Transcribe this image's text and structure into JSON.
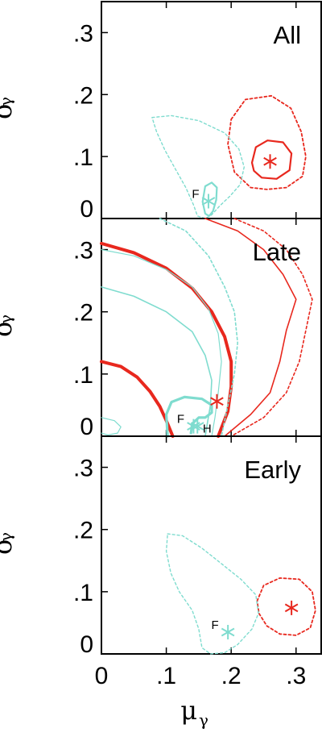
{
  "colors": {
    "red": "#e8281e",
    "cyan": "#7fdccf",
    "frame": "#000000"
  },
  "axes": {
    "xlabel_main": "μ",
    "xlabel_sub": "γ",
    "ylabel_main": "σ",
    "ylabel_sub": "γ",
    "xticks": [
      {
        "v": 0,
        "label": "0"
      },
      {
        "v": 0.1,
        "label": ".1"
      },
      {
        "v": 0.2,
        "label": ".2"
      },
      {
        "v": 0.3,
        "label": ".3"
      }
    ],
    "yticks": [
      {
        "v": 0,
        "label": "0"
      },
      {
        "v": 0.1,
        "label": ".1"
      },
      {
        "v": 0.2,
        "label": ".2"
      },
      {
        "v": 0.3,
        "label": ".3"
      }
    ],
    "xlim": [
      0,
      0.34
    ],
    "ylim": [
      0,
      0.35
    ]
  },
  "chart_data": [
    {
      "type": "scatter",
      "title": "All",
      "xlim": [
        0,
        0.34
      ],
      "ylim": [
        0,
        0.35
      ],
      "markers": [
        {
          "color": "red",
          "x": 0.26,
          "y": 0.092,
          "label": ""
        },
        {
          "color": "cyan",
          "x": 0.165,
          "y": 0.028,
          "label": "F"
        }
      ],
      "contours": [
        {
          "color": "red",
          "style": "solid",
          "width": 2.2,
          "points": [
            [
              0.232,
              0.09
            ],
            [
              0.238,
              0.115
            ],
            [
              0.256,
              0.126
            ],
            [
              0.28,
              0.123
            ],
            [
              0.293,
              0.105
            ],
            [
              0.29,
              0.078
            ],
            [
              0.27,
              0.064
            ],
            [
              0.247,
              0.066
            ],
            [
              0.235,
              0.077
            ],
            [
              0.232,
              0.09
            ]
          ]
        },
        {
          "color": "red",
          "style": "dash",
          "width": 1.8,
          "points": [
            [
              0.2,
              0.16
            ],
            [
              0.222,
              0.192
            ],
            [
              0.262,
              0.198
            ],
            [
              0.292,
              0.178
            ],
            [
              0.308,
              0.14
            ],
            [
              0.315,
              0.1
            ],
            [
              0.31,
              0.068
            ],
            [
              0.285,
              0.05
            ],
            [
              0.255,
              0.047
            ],
            [
              0.23,
              0.05
            ],
            [
              0.205,
              0.075
            ],
            [
              0.195,
              0.12
            ],
            [
              0.2,
              0.16
            ]
          ]
        },
        {
          "color": "cyan",
          "style": "dash",
          "width": 1.4,
          "points": [
            [
              0.078,
              0.163
            ],
            [
              0.108,
              0.166
            ],
            [
              0.15,
              0.158
            ],
            [
              0.19,
              0.138
            ],
            [
              0.212,
              0.112
            ],
            [
              0.22,
              0.083
            ],
            [
              0.214,
              0.055
            ],
            [
              0.198,
              0.036
            ],
            [
              0.182,
              0.02
            ],
            [
              0.17,
              0.006
            ],
            [
              0.16,
              0.0
            ],
            [
              0.148,
              0.004
            ],
            [
              0.142,
              0.022
            ],
            [
              0.13,
              0.05
            ],
            [
              0.115,
              0.078
            ],
            [
              0.098,
              0.11
            ],
            [
              0.085,
              0.14
            ],
            [
              0.078,
              0.163
            ]
          ]
        },
        {
          "color": "cyan",
          "style": "solid",
          "width": 2.2,
          "points": [
            [
              0.156,
              0.027
            ],
            [
              0.16,
              0.052
            ],
            [
              0.17,
              0.058
            ],
            [
              0.178,
              0.05
            ],
            [
              0.177,
              0.03
            ],
            [
              0.172,
              0.012
            ],
            [
              0.166,
              0.004
            ],
            [
              0.16,
              0.008
            ],
            [
              0.156,
              0.027
            ]
          ]
        }
      ]
    },
    {
      "type": "scatter",
      "title": "Late",
      "xlim": [
        0,
        0.34
      ],
      "ylim": [
        0,
        0.35
      ],
      "markers": [
        {
          "color": "red",
          "x": 0.178,
          "y": 0.056,
          "label": ""
        },
        {
          "color": "cyan",
          "x": 0.142,
          "y": 0.016,
          "label": "F"
        },
        {
          "color": "cyan",
          "x": 0.148,
          "y": 0.016,
          "label": "H"
        }
      ],
      "contours": [
        {
          "color": "red",
          "style": "solid",
          "width": 4,
          "points": [
            [
              0.0,
              0.12
            ],
            [
              0.03,
              0.112
            ],
            [
              0.055,
              0.095
            ],
            [
              0.075,
              0.072
            ],
            [
              0.09,
              0.048
            ],
            [
              0.1,
              0.025
            ],
            [
              0.11,
              0.0
            ]
          ]
        },
        {
          "color": "red",
          "style": "solid",
          "width": 4,
          "points": [
            [
              0.0,
              0.31
            ],
            [
              0.05,
              0.295
            ],
            [
              0.1,
              0.27
            ],
            [
              0.14,
              0.238
            ],
            [
              0.17,
              0.2
            ],
            [
              0.19,
              0.16
            ],
            [
              0.2,
              0.12
            ],
            [
              0.2,
              0.08
            ],
            [
              0.195,
              0.04
            ],
            [
              0.18,
              0.0
            ]
          ]
        },
        {
          "color": "red",
          "style": "solid",
          "width": 1.6,
          "points": [
            [
              0.16,
              0.35
            ],
            [
              0.21,
              0.33
            ],
            [
              0.25,
              0.3
            ],
            [
              0.28,
              0.26
            ],
            [
              0.3,
              0.22
            ],
            [
              0.285,
              0.17
            ],
            [
              0.275,
              0.12
            ],
            [
              0.26,
              0.07
            ],
            [
              0.23,
              0.035
            ],
            [
              0.19,
              0.0
            ]
          ]
        },
        {
          "color": "red",
          "style": "dash",
          "width": 1.6,
          "points": [
            [
              0.205,
              0.35
            ],
            [
              0.25,
              0.33
            ],
            [
              0.285,
              0.3
            ],
            [
              0.31,
              0.26
            ],
            [
              0.325,
              0.22
            ],
            [
              0.315,
              0.17
            ],
            [
              0.305,
              0.12
            ],
            [
              0.285,
              0.07
            ],
            [
              0.25,
              0.03
            ],
            [
              0.2,
              0.0
            ]
          ]
        },
        {
          "color": "cyan",
          "style": "solid",
          "width": 1.6,
          "points": [
            [
              0.0,
              0.24
            ],
            [
              0.05,
              0.225
            ],
            [
              0.1,
              0.2
            ],
            [
              0.14,
              0.168
            ],
            [
              0.16,
              0.13
            ],
            [
              0.17,
              0.09
            ],
            [
              0.168,
              0.05
            ],
            [
              0.16,
              0.0
            ]
          ]
        },
        {
          "color": "cyan",
          "style": "dash",
          "width": 1.6,
          "points": [
            [
              0.09,
              0.35
            ],
            [
              0.13,
              0.33
            ],
            [
              0.165,
              0.29
            ],
            [
              0.19,
              0.24
            ],
            [
              0.205,
              0.2
            ],
            [
              0.21,
              0.15
            ],
            [
              0.205,
              0.1
            ],
            [
              0.195,
              0.05
            ],
            [
              0.185,
              0.0
            ]
          ]
        },
        {
          "color": "cyan",
          "style": "solid",
          "width": 1.2,
          "points": [
            [
              0.0,
              0.3
            ],
            [
              0.05,
              0.29
            ],
            [
              0.1,
              0.268
            ],
            [
              0.14,
              0.24
            ],
            [
              0.165,
              0.205
            ],
            [
              0.18,
              0.165
            ],
            [
              0.185,
              0.12
            ],
            [
              0.18,
              0.07
            ],
            [
              0.175,
              0.03
            ],
            [
              0.17,
              0.0
            ]
          ]
        },
        {
          "color": "cyan",
          "style": "solid",
          "width": 3.2,
          "points": [
            [
              0.102,
              0.0
            ],
            [
              0.1,
              0.035
            ],
            [
              0.108,
              0.055
            ],
            [
              0.128,
              0.063
            ],
            [
              0.155,
              0.06
            ],
            [
              0.17,
              0.05
            ],
            [
              0.17,
              0.038
            ],
            [
              0.16,
              0.03
            ],
            [
              0.15,
              0.03
            ],
            [
              0.14,
              0.02
            ],
            [
              0.138,
              0.005
            ]
          ]
        },
        {
          "color": "cyan",
          "style": "solid",
          "width": 1.2,
          "points": [
            [
              0.0,
              0.03
            ],
            [
              0.02,
              0.025
            ],
            [
              0.03,
              0.015
            ],
            [
              0.025,
              0.005
            ],
            [
              0.01,
              0.002
            ],
            [
              0.0,
              0.005
            ]
          ]
        }
      ]
    },
    {
      "type": "scatter",
      "title": "Early",
      "xlim": [
        0,
        0.34
      ],
      "ylim": [
        0,
        0.35
      ],
      "markers": [
        {
          "color": "red",
          "x": 0.293,
          "y": 0.074,
          "label": ""
        },
        {
          "color": "cyan",
          "x": 0.195,
          "y": 0.035,
          "label": "F"
        }
      ],
      "contours": [
        {
          "color": "red",
          "style": "dash",
          "width": 1.8,
          "points": [
            [
              0.24,
              0.085
            ],
            [
              0.25,
              0.11
            ],
            [
              0.275,
              0.122
            ],
            [
              0.305,
              0.12
            ],
            [
              0.325,
              0.1
            ],
            [
              0.33,
              0.07
            ],
            [
              0.322,
              0.042
            ],
            [
              0.3,
              0.03
            ],
            [
              0.275,
              0.032
            ],
            [
              0.255,
              0.045
            ],
            [
              0.243,
              0.065
            ],
            [
              0.24,
              0.085
            ]
          ]
        },
        {
          "color": "cyan",
          "style": "dash",
          "width": 1.4,
          "points": [
            [
              0.102,
              0.193
            ],
            [
              0.125,
              0.19
            ],
            [
              0.155,
              0.17
            ],
            [
              0.185,
              0.145
            ],
            [
              0.215,
              0.12
            ],
            [
              0.238,
              0.095
            ],
            [
              0.242,
              0.065
            ],
            [
              0.232,
              0.04
            ],
            [
              0.21,
              0.015
            ],
            [
              0.19,
              0.002
            ],
            [
              0.168,
              0.0
            ],
            [
              0.155,
              0.01
            ],
            [
              0.15,
              0.04
            ],
            [
              0.14,
              0.07
            ],
            [
              0.12,
              0.1
            ],
            [
              0.107,
              0.13
            ],
            [
              0.1,
              0.165
            ],
            [
              0.102,
              0.193
            ]
          ]
        }
      ]
    }
  ],
  "figure_texts": {
    "panel0": "All",
    "panel1": "Late",
    "panel2": "Early"
  }
}
